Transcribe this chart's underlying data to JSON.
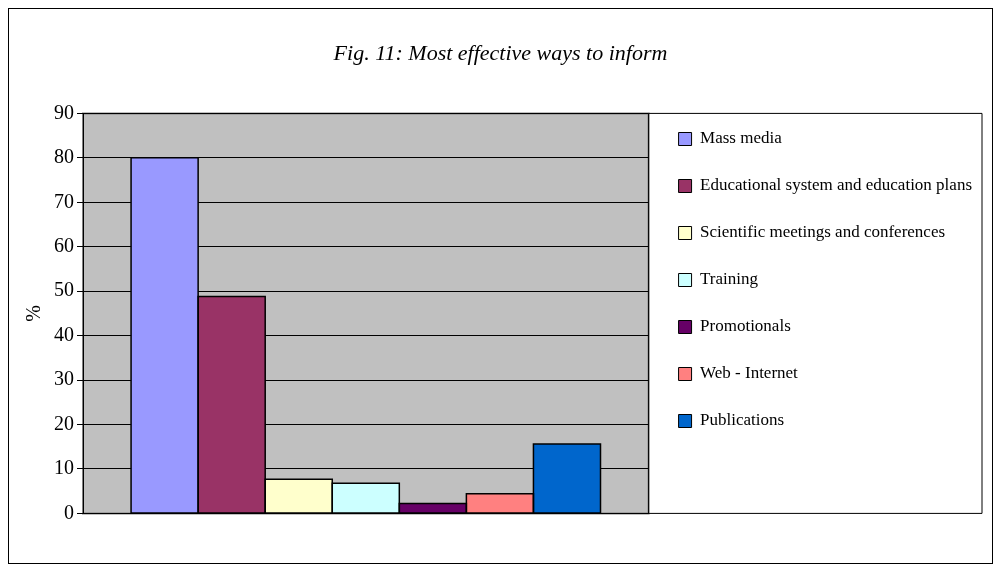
{
  "chart_data": {
    "type": "bar",
    "title": "Fig. 11: Most effective ways to inform",
    "ylabel": "%",
    "categories": [
      null
    ],
    "series": [
      {
        "name": "Mass media",
        "color": "#9999ff",
        "values": [
          80
        ]
      },
      {
        "name": "Educational system and education plans",
        "color": "#993366",
        "values": [
          48.8
        ]
      },
      {
        "name": "Scientific meetings and conferences",
        "color": "#ffffcc",
        "values": [
          7.7
        ]
      },
      {
        "name": "Training",
        "color": "#ccffff",
        "values": [
          6.8
        ]
      },
      {
        "name": "Promotionals",
        "color": "#660066",
        "values": [
          2.2
        ]
      },
      {
        "name": "Web - Internet",
        "color": "#ff8080",
        "values": [
          4.4
        ]
      },
      {
        "name": "Publications",
        "color": "#0066cc",
        "values": [
          15.6
        ]
      }
    ],
    "ylim": [
      0,
      90
    ],
    "yticks": [
      0,
      10,
      20,
      30,
      40,
      50,
      60,
      70,
      80,
      90
    ],
    "grid": "y",
    "legend": "right"
  }
}
